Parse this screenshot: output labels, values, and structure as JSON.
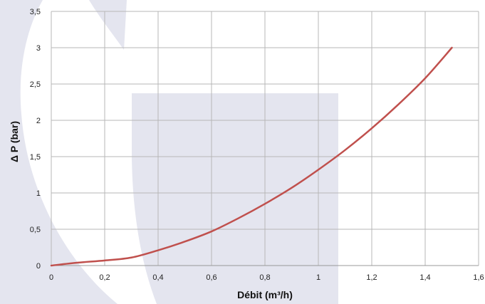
{
  "colors": {
    "background": "#ffffff",
    "watermark": "#e4e5ef",
    "grid": "#b7b7b7",
    "axis": "#999999",
    "series": "#c0504d"
  },
  "chart_data": {
    "type": "line",
    "title": "",
    "xlabel": "Débit (m³/h)",
    "ylabel": "Δ P (bar)",
    "xlim": [
      0,
      1.6
    ],
    "ylim": [
      0,
      3.5
    ],
    "grid": true,
    "legend": "none",
    "x_ticks": [
      "0",
      "0,2",
      "0,4",
      "0,6",
      "0,8",
      "1",
      "1,2",
      "1,4",
      "1,6"
    ],
    "y_ticks": [
      "0",
      "0,5",
      "1",
      "1,5",
      "2",
      "2,5",
      "3",
      "3,5"
    ],
    "series": [
      {
        "x": [
          0,
          0.1,
          0.2,
          0.3,
          0.4,
          0.5,
          0.6,
          0.7,
          0.8,
          0.9,
          1.0,
          1.1,
          1.2,
          1.3,
          1.4,
          1.5
        ],
        "y": [
          0,
          0.04,
          0.07,
          0.11,
          0.21,
          0.33,
          0.47,
          0.65,
          0.85,
          1.07,
          1.32,
          1.59,
          1.89,
          2.22,
          2.58,
          3.0
        ]
      }
    ]
  }
}
